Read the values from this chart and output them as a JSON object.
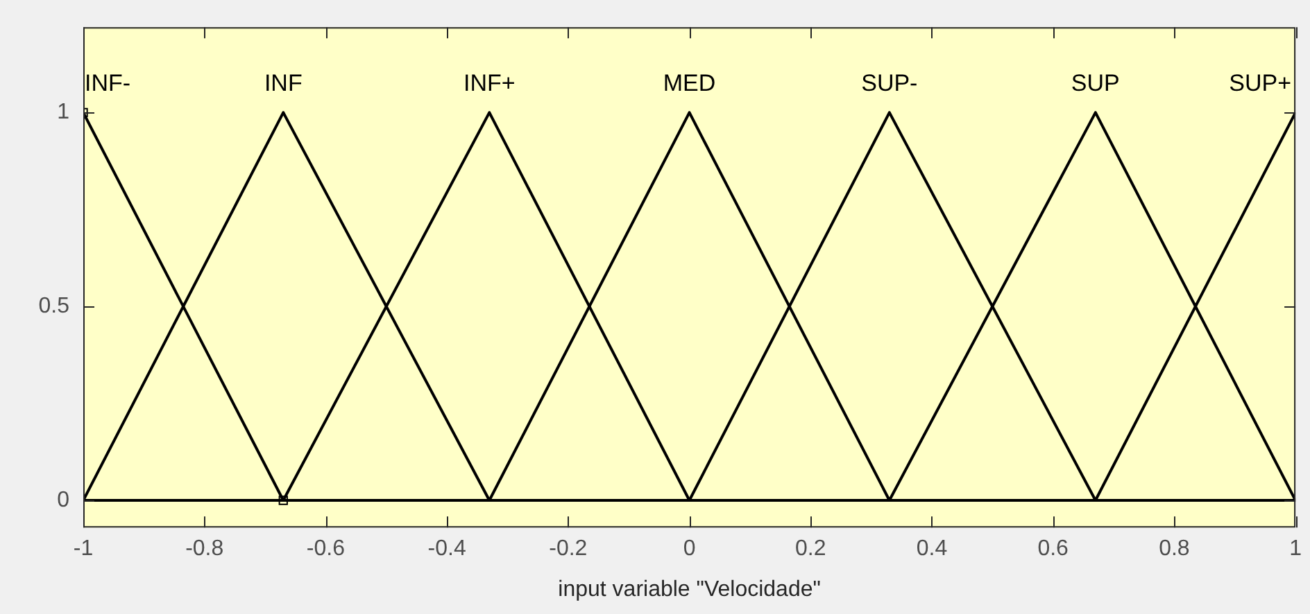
{
  "chart_data": {
    "type": "line",
    "xlabel": "input variable \"Velocidade\"",
    "series": [
      {
        "name": "INF-",
        "color": "#000000",
        "x": [
          -1,
          -0.67,
          1
        ],
        "values": [
          1,
          0,
          0
        ]
      },
      {
        "name": "INF",
        "color": "#000000",
        "x": [
          -1,
          -0.67,
          -0.33,
          1
        ],
        "values": [
          0,
          1,
          0,
          0
        ]
      },
      {
        "name": "INF+",
        "color": "#000000",
        "x": [
          -1,
          -0.67,
          -0.33,
          0,
          1
        ],
        "values": [
          0,
          0,
          1,
          0,
          0
        ]
      },
      {
        "name": "MED",
        "color": "#000000",
        "x": [
          -1,
          -0.33,
          0,
          0.33,
          1
        ],
        "values": [
          0,
          0,
          1,
          0,
          0
        ]
      },
      {
        "name": "SUP-",
        "color": "#000000",
        "x": [
          -1,
          0,
          0.33,
          0.67,
          1
        ],
        "values": [
          0,
          0,
          1,
          0,
          0
        ]
      },
      {
        "name": "SUP",
        "color": "#000000",
        "x": [
          -1,
          0.33,
          0.67,
          1
        ],
        "values": [
          0,
          0,
          1,
          0
        ]
      },
      {
        "name": "SUP+",
        "color": "#000000",
        "x": [
          -1,
          0.67,
          1
        ],
        "values": [
          0,
          0,
          1
        ]
      },
      {
        "type": "scatter",
        "marker": "square",
        "color": "#000000",
        "x": [
          -1,
          -0.67
        ],
        "values": [
          1,
          0
        ]
      }
    ],
    "xlim": [
      -1,
      1
    ],
    "xticks": [
      -1,
      -0.8,
      -0.6,
      -0.4,
      -0.2,
      0,
      0.2,
      0.4,
      0.6,
      0.8,
      1
    ],
    "ylim": [
      -0.07,
      1.22
    ],
    "yticks": [
      0,
      0.5,
      1
    ],
    "grid": false,
    "legend": false,
    "marker": "none"
  }
}
